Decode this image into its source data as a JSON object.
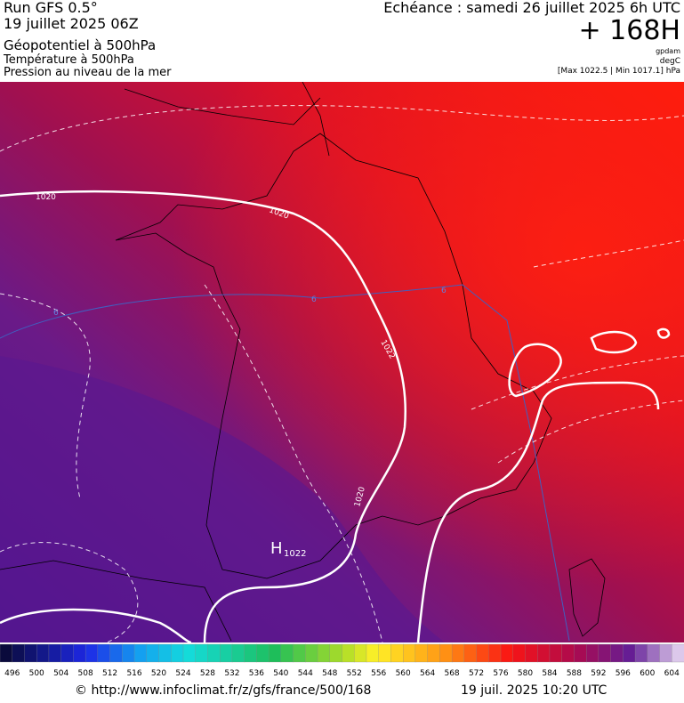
{
  "header": {
    "run": "Run GFS 0.5°",
    "date": "19 juillet 2025 06Z",
    "fields": [
      "Géopotentiel à 500hPa",
      "Température à 500hPa",
      "Pression au niveau de la mer"
    ],
    "echeance": "Echéance : samedi 26 juillet 2025 6h UTC",
    "lead": "+ 168H",
    "units": [
      "gpdam",
      "degC",
      "[Max 1022.5 | Min 1017.1] hPa"
    ]
  },
  "map": {
    "isobar_labels": [
      "1020",
      "1020",
      "1022",
      "1020"
    ],
    "high": {
      "letter": "H",
      "value": "1022"
    },
    "isotherm_labels": [
      "6",
      "6",
      "6"
    ]
  },
  "scale": {
    "labels": [
      496,
      500,
      504,
      508,
      512,
      516,
      520,
      524,
      528,
      532,
      536,
      540,
      544,
      548,
      552,
      556,
      560,
      564,
      568,
      572,
      576,
      580,
      584,
      588,
      592,
      596,
      600,
      604
    ]
  },
  "footer": {
    "url": "© http://www.infoclimat.fr/z/gfs/france/500/168",
    "time": "19 juil. 2025 10:20 UTC"
  }
}
